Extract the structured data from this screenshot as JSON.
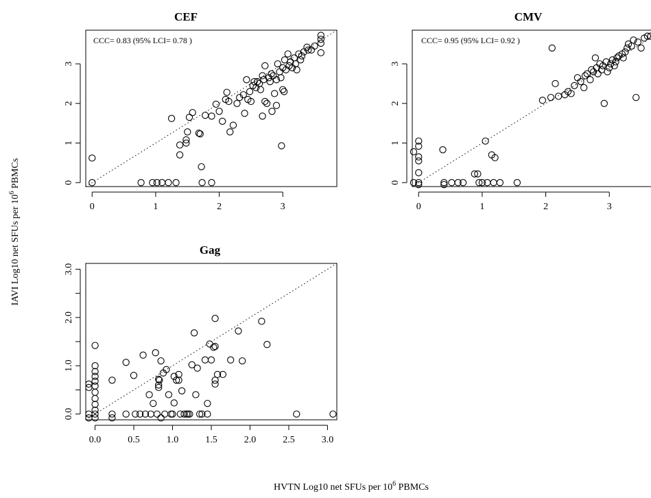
{
  "figure": {
    "xlabel": "HVTN Log10 net SFUs per 10",
    "xlabel_sup": "6",
    "xlabel_suffix": " PBMCs",
    "ylabel": "IAVI Log10 net SFUs per 10",
    "ylabel_sup": "6",
    "ylabel_suffix": " PBMCs"
  },
  "chart_data": [
    {
      "type": "scatter",
      "title": "CEF",
      "annotation": "CCC= 0.83  (95% LCI= 0.78 )",
      "xlim": [
        -0.1,
        3.85
      ],
      "ylim": [
        -0.1,
        3.85
      ],
      "xticks": [
        0,
        1,
        2,
        3
      ],
      "xtick_labels": [
        "0",
        "1",
        "2",
        "3"
      ],
      "yticks": [
        0,
        1,
        2,
        3
      ],
      "ytick_labels": [
        "0",
        "1",
        "2",
        "3"
      ],
      "reference_line": "y = x",
      "points": [
        [
          0,
          0
        ],
        [
          0,
          0.62
        ],
        [
          0.77,
          0
        ],
        [
          0.95,
          0
        ],
        [
          1.02,
          0
        ],
        [
          1.1,
          0
        ],
        [
          1.2,
          0
        ],
        [
          1.32,
          0
        ],
        [
          1.25,
          1.62
        ],
        [
          1.38,
          0.7
        ],
        [
          1.38,
          0.95
        ],
        [
          1.48,
          1.0
        ],
        [
          1.48,
          1.08
        ],
        [
          1.5,
          1.28
        ],
        [
          1.53,
          1.65
        ],
        [
          1.58,
          1.77
        ],
        [
          1.68,
          1.25
        ],
        [
          1.7,
          1.23
        ],
        [
          1.72,
          0.4
        ],
        [
          1.73,
          0
        ],
        [
          1.78,
          1.7
        ],
        [
          1.88,
          0
        ],
        [
          1.88,
          1.68
        ],
        [
          1.95,
          1.98
        ],
        [
          2.0,
          1.8
        ],
        [
          2.05,
          1.55
        ],
        [
          2.1,
          2.1
        ],
        [
          2.12,
          2.28
        ],
        [
          2.15,
          2.05
        ],
        [
          2.17,
          1.28
        ],
        [
          2.22,
          1.45
        ],
        [
          2.28,
          2.0
        ],
        [
          2.32,
          2.15
        ],
        [
          2.38,
          2.22
        ],
        [
          2.4,
          1.75
        ],
        [
          2.43,
          2.6
        ],
        [
          2.45,
          2.1
        ],
        [
          2.48,
          2.3
        ],
        [
          2.5,
          2.05
        ],
        [
          2.53,
          2.45
        ],
        [
          2.55,
          2.55
        ],
        [
          2.58,
          2.4
        ],
        [
          2.6,
          2.55
        ],
        [
          2.63,
          2.5
        ],
        [
          2.65,
          2.35
        ],
        [
          2.68,
          2.7
        ],
        [
          2.68,
          1.68
        ],
        [
          2.7,
          2.6
        ],
        [
          2.72,
          2.05
        ],
        [
          2.72,
          2.95
        ],
        [
          2.75,
          2.0
        ],
        [
          2.78,
          2.65
        ],
        [
          2.8,
          2.55
        ],
        [
          2.82,
          2.75
        ],
        [
          2.83,
          1.8
        ],
        [
          2.85,
          2.7
        ],
        [
          2.87,
          2.25
        ],
        [
          2.9,
          2.6
        ],
        [
          2.9,
          1.95
        ],
        [
          2.92,
          3.0
        ],
        [
          2.95,
          2.8
        ],
        [
          2.97,
          2.65
        ],
        [
          2.98,
          0.93
        ],
        [
          3.0,
          2.35
        ],
        [
          3.0,
          2.9
        ],
        [
          3.02,
          2.3
        ],
        [
          3.03,
          3.1
        ],
        [
          3.05,
          2.85
        ],
        [
          3.08,
          3.25
        ],
        [
          3.1,
          2.95
        ],
        [
          3.12,
          3.05
        ],
        [
          3.15,
          2.9
        ],
        [
          3.18,
          3.15
        ],
        [
          3.2,
          3.0
        ],
        [
          3.22,
          2.85
        ],
        [
          3.25,
          3.25
        ],
        [
          3.28,
          3.1
        ],
        [
          3.3,
          3.2
        ],
        [
          3.33,
          3.3
        ],
        [
          3.38,
          3.42
        ],
        [
          3.4,
          3.35
        ],
        [
          3.45,
          3.35
        ],
        [
          3.5,
          3.45
        ],
        [
          3.6,
          3.28
        ],
        [
          3.6,
          3.52
        ],
        [
          3.6,
          3.62
        ],
        [
          3.6,
          3.72
        ]
      ]
    },
    {
      "type": "scatter",
      "title": "CMV",
      "annotation": "CCC= 0.95  (95% LCI= 0.92 )",
      "xlim": [
        -0.1,
        3.85
      ],
      "ylim": [
        -0.1,
        3.85
      ],
      "xticks": [
        0,
        1,
        2,
        3
      ],
      "xtick_labels": [
        "0",
        "1",
        "2",
        "3"
      ],
      "yticks": [
        0,
        1,
        2,
        3
      ],
      "ytick_labels": [
        "0",
        "1",
        "2",
        "3"
      ],
      "reference_line": "y = x",
      "points": [
        [
          -0.08,
          0.78
        ],
        [
          -0.08,
          0
        ],
        [
          0,
          0.92
        ],
        [
          0,
          1.05
        ],
        [
          0,
          0.65
        ],
        [
          0,
          0.55
        ],
        [
          0,
          0.25
        ],
        [
          0,
          0
        ],
        [
          0,
          -0.05
        ],
        [
          0.38,
          0.83
        ],
        [
          0.4,
          0
        ],
        [
          0.4,
          -0.05
        ],
        [
          0.52,
          0
        ],
        [
          0.62,
          0
        ],
        [
          0.7,
          0
        ],
        [
          0.88,
          0.22
        ],
        [
          0.93,
          0.22
        ],
        [
          0.95,
          0
        ],
        [
          1.0,
          0
        ],
        [
          1.05,
          1.05
        ],
        [
          1.08,
          0
        ],
        [
          1.15,
          0.7
        ],
        [
          1.18,
          0
        ],
        [
          1.2,
          0.63
        ],
        [
          1.28,
          0
        ],
        [
          1.55,
          0
        ],
        [
          1.95,
          2.08
        ],
        [
          2.08,
          2.15
        ],
        [
          2.1,
          3.4
        ],
        [
          2.15,
          2.5
        ],
        [
          2.2,
          2.18
        ],
        [
          2.3,
          2.22
        ],
        [
          2.35,
          2.3
        ],
        [
          2.4,
          2.25
        ],
        [
          2.45,
          2.45
        ],
        [
          2.5,
          2.65
        ],
        [
          2.55,
          2.55
        ],
        [
          2.6,
          2.4
        ],
        [
          2.62,
          2.7
        ],
        [
          2.65,
          2.75
        ],
        [
          2.7,
          2.6
        ],
        [
          2.72,
          2.85
        ],
        [
          2.75,
          2.8
        ],
        [
          2.78,
          3.15
        ],
        [
          2.8,
          2.9
        ],
        [
          2.82,
          2.75
        ],
        [
          2.85,
          3.0
        ],
        [
          2.88,
          2.85
        ],
        [
          2.9,
          2.95
        ],
        [
          2.92,
          2.0
        ],
        [
          2.95,
          3.05
        ],
        [
          2.97,
          2.8
        ],
        [
          3.0,
          2.9
        ],
        [
          3.02,
          3.0
        ],
        [
          3.05,
          3.1
        ],
        [
          3.08,
          2.95
        ],
        [
          3.1,
          3.05
        ],
        [
          3.12,
          3.15
        ],
        [
          3.15,
          3.2
        ],
        [
          3.2,
          3.25
        ],
        [
          3.22,
          3.15
        ],
        [
          3.25,
          3.3
        ],
        [
          3.28,
          3.4
        ],
        [
          3.3,
          3.5
        ],
        [
          3.35,
          3.45
        ],
        [
          3.38,
          3.6
        ],
        [
          3.42,
          2.15
        ],
        [
          3.45,
          3.55
        ],
        [
          3.5,
          3.4
        ],
        [
          3.55,
          3.65
        ],
        [
          3.6,
          3.7
        ],
        [
          3.65,
          3.7
        ]
      ]
    },
    {
      "type": "scatter",
      "title": "Gag",
      "annotation": "",
      "xlim": [
        -0.12,
        3.12
      ],
      "ylim": [
        -0.12,
        3.12
      ],
      "xticks": [
        0,
        0.5,
        1,
        1.5,
        2,
        2.5,
        3
      ],
      "xtick_labels": [
        "0.0",
        "0.5",
        "1.0",
        "1.5",
        "2.0",
        "2.5",
        "3.0"
      ],
      "yticks": [
        0,
        1,
        2,
        3
      ],
      "ytick_labels": [
        "0.0",
        "1.0",
        "2.0",
        "3.0"
      ],
      "yminor_ticks": [
        0.5,
        1.5,
        2.5
      ],
      "reference_line": "y = x",
      "points": [
        [
          -0.08,
          0.55
        ],
        [
          -0.08,
          0.62
        ],
        [
          -0.08,
          0
        ],
        [
          -0.08,
          -0.08
        ],
        [
          0,
          1.42
        ],
        [
          0,
          1.0
        ],
        [
          0,
          0.88
        ],
        [
          0,
          0.78
        ],
        [
          0,
          0.68
        ],
        [
          0,
          0.58
        ],
        [
          0,
          0.45
        ],
        [
          0,
          0.32
        ],
        [
          0,
          0.2
        ],
        [
          0,
          0.08
        ],
        [
          0,
          0
        ],
        [
          0,
          -0.08
        ],
        [
          0.22,
          0.7
        ],
        [
          0.22,
          0
        ],
        [
          0.22,
          -0.08
        ],
        [
          0.4,
          1.07
        ],
        [
          0.4,
          0
        ],
        [
          0.5,
          0.8
        ],
        [
          0.52,
          0
        ],
        [
          0.58,
          0
        ],
        [
          0.62,
          1.22
        ],
        [
          0.65,
          0
        ],
        [
          0.7,
          0.4
        ],
        [
          0.72,
          0
        ],
        [
          0.75,
          0.22
        ],
        [
          0.78,
          1.27
        ],
        [
          0.8,
          0
        ],
        [
          0.82,
          0.72
        ],
        [
          0.82,
          0.55
        ],
        [
          0.82,
          0.6
        ],
        [
          0.83,
          0.7
        ],
        [
          0.85,
          1.1
        ],
        [
          0.85,
          -0.08
        ],
        [
          0.88,
          0.85
        ],
        [
          0.9,
          0
        ],
        [
          0.92,
          0.92
        ],
        [
          0.95,
          0.4
        ],
        [
          0.98,
          0
        ],
        [
          1.0,
          0
        ],
        [
          1.02,
          0.23
        ],
        [
          1.02,
          0.78
        ],
        [
          1.05,
          0.7
        ],
        [
          1.08,
          0.82
        ],
        [
          1.08,
          0.7
        ],
        [
          1.1,
          0
        ],
        [
          1.12,
          0.48
        ],
        [
          1.15,
          0
        ],
        [
          1.18,
          0
        ],
        [
          1.2,
          0
        ],
        [
          1.22,
          0
        ],
        [
          1.25,
          1.02
        ],
        [
          1.28,
          1.68
        ],
        [
          1.3,
          0.4
        ],
        [
          1.32,
          0.95
        ],
        [
          1.35,
          0
        ],
        [
          1.38,
          0
        ],
        [
          1.42,
          1.12
        ],
        [
          1.45,
          0.22
        ],
        [
          1.45,
          0
        ],
        [
          1.48,
          1.45
        ],
        [
          1.5,
          1.12
        ],
        [
          1.53,
          1.38
        ],
        [
          1.55,
          1.4
        ],
        [
          1.55,
          0.7
        ],
        [
          1.55,
          0.62
        ],
        [
          1.55,
          1.98
        ],
        [
          1.58,
          0.82
        ],
        [
          1.65,
          0.82
        ],
        [
          1.75,
          1.12
        ],
        [
          1.85,
          1.72
        ],
        [
          1.9,
          1.1
        ],
        [
          2.15,
          1.92
        ],
        [
          2.22,
          1.44
        ],
        [
          2.6,
          0
        ],
        [
          3.07,
          0
        ]
      ]
    }
  ]
}
